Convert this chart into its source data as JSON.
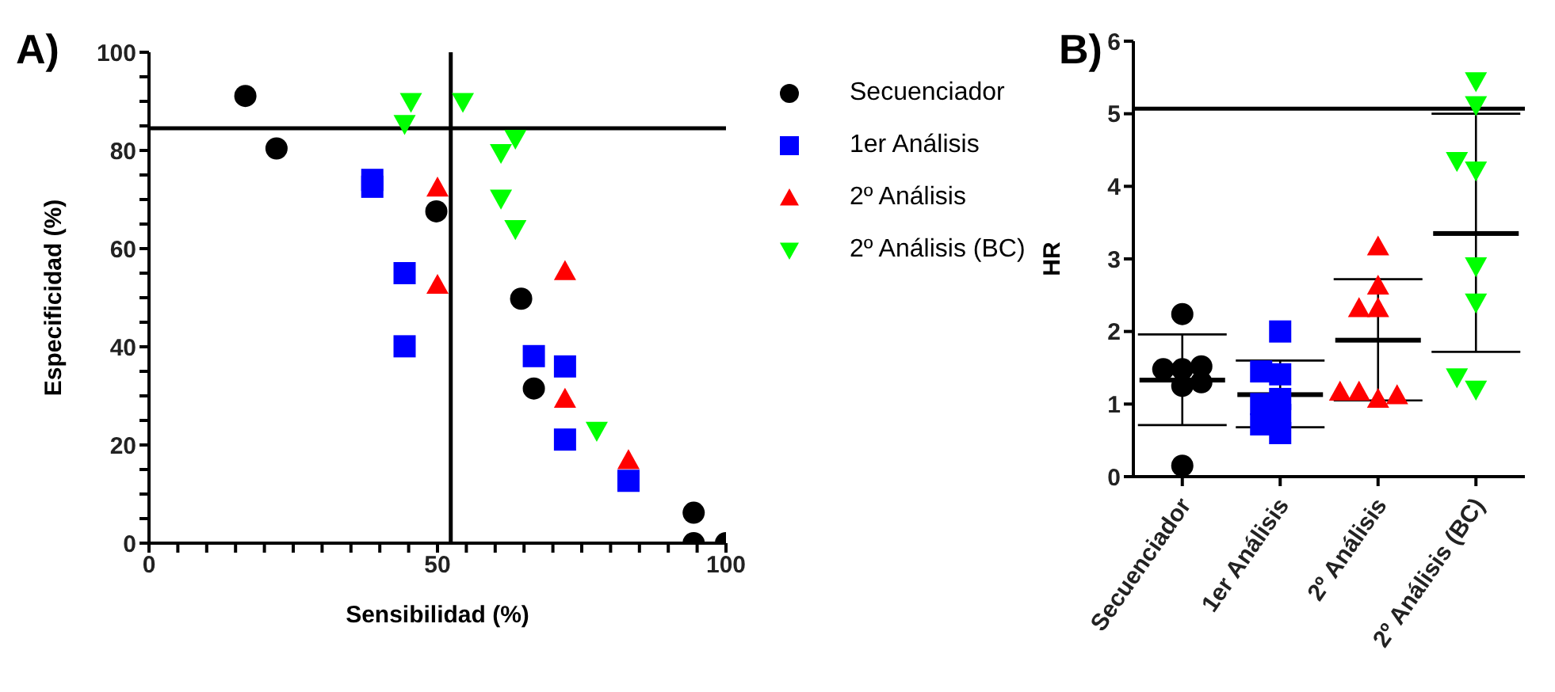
{
  "chart_data": [
    {
      "type": "scatter",
      "title": "A)",
      "xlabel": "Sensibilidad (%)",
      "ylabel": "Especificidad (%)",
      "xlim": [
        0,
        100
      ],
      "ylim": [
        0,
        100
      ],
      "xticks": [
        0,
        {
          "value": 5,
          "label": null
        },
        {
          "value": 10,
          "label": null
        },
        {
          "value": 15,
          "label": null
        },
        {
          "value": 20,
          "label": null
        },
        {
          "value": 25,
          "label": null
        },
        {
          "value": 30,
          "label": null
        },
        {
          "value": 35,
          "label": null
        },
        {
          "value": 40,
          "label": null
        },
        {
          "value": 45,
          "label": null
        },
        50,
        {
          "value": 55,
          "label": null
        },
        {
          "value": 60,
          "label": null
        },
        {
          "value": 65,
          "label": null
        },
        {
          "value": 70,
          "label": null
        },
        {
          "value": 75,
          "label": null
        },
        {
          "value": 80,
          "label": null
        },
        {
          "value": 85,
          "label": null
        },
        {
          "value": 90,
          "label": null
        },
        {
          "value": 95,
          "label": null
        },
        100
      ],
      "yticks": [
        0,
        {
          "value": 5,
          "label": null
        },
        {
          "value": 10,
          "label": null
        },
        {
          "value": 15,
          "label": null
        },
        20,
        {
          "value": 25,
          "label": null
        },
        {
          "value": 30,
          "label": null
        },
        {
          "value": 35,
          "label": null
        },
        40,
        {
          "value": 45,
          "label": null
        },
        {
          "value": 50,
          "label": null
        },
        {
          "value": 55,
          "label": null
        },
        60,
        {
          "value": 65,
          "label": null
        },
        {
          "value": 70,
          "label": null
        },
        {
          "value": 75,
          "label": null
        },
        80,
        {
          "value": 85,
          "label": null
        },
        {
          "value": 90,
          "label": null
        },
        {
          "value": 95,
          "label": null
        },
        100
      ],
      "grid": false,
      "legend": "right",
      "ref_lines": [
        {
          "axis": "x",
          "value": 52.3
        },
        {
          "axis": "y",
          "value": 84.5
        }
      ],
      "series": [
        {
          "name": "Secuenciador",
          "color": "#000000",
          "marker": "circle",
          "x": [
            16.7,
            22.1,
            49.8,
            64.5,
            66.7,
            94.4,
            94.4,
            100
          ],
          "values": [
            91.1,
            80.4,
            67.6,
            49.8,
            31.5,
            6.2,
            0,
            0
          ]
        },
        {
          "name": "1er Análisis",
          "color": "#0000ff",
          "marker": "square",
          "x": [
            38.7,
            38.7,
            44.3,
            44.3,
            66.7,
            72.1,
            72.1,
            83.1
          ],
          "values": [
            74,
            72.6,
            55,
            40.1,
            38.1,
            36,
            21.1,
            12.7
          ]
        },
        {
          "name": "2º Análisis",
          "color": "#ff0000",
          "marker": "triangle",
          "x": [
            50,
            50,
            72.1,
            72.1,
            83.1
          ],
          "values": [
            72.4,
            52.6,
            55.4,
            29.4,
            16.9
          ]
        },
        {
          "name": "2º Análisis (BC)",
          "color": "#00ff00",
          "marker": "triangle-down",
          "x": [
            45.4,
            44.3,
            54.4,
            63.5,
            61,
            61,
            63.5,
            77.6
          ],
          "values": [
            89.9,
            85.4,
            89.9,
            82.4,
            79.5,
            70.2,
            64,
            22.9
          ]
        }
      ]
    },
    {
      "type": "scatter",
      "title": "B)",
      "ylabel": "HR",
      "categories": [
        "Secuenciador",
        "1er Análisis",
        "2º Análisis",
        "2º Análisis (BC)"
      ],
      "ylim": [
        0,
        6
      ],
      "yticks": [
        0,
        1,
        2,
        3,
        4,
        5,
        6
      ],
      "grid": false,
      "legend": false,
      "ref_lines": [
        {
          "axis": "y",
          "value": 5.07
        }
      ],
      "series": [
        {
          "type": "box",
          "color": "#000000",
          "boxes": [
            {
              "low": 0.71,
              "q1": 1.33,
              "median": 1.33,
              "q3": 1.33,
              "high": 1.96
            },
            {
              "low": 0.68,
              "q1": 1.13,
              "median": 1.13,
              "q3": 1.13,
              "high": 1.6
            },
            {
              "low": 1.05,
              "q1": 1.88,
              "median": 1.88,
              "q3": 1.88,
              "high": 2.72
            },
            {
              "low": 1.72,
              "q1": 3.35,
              "median": 3.35,
              "q3": 3.35,
              "high": 5.0
            }
          ]
        },
        {
          "color": "#000000",
          "marker": "circle",
          "x": [
            "Secuenciador",
            "Secuenciador",
            "Secuenciador",
            "Secuenciador",
            "Secuenciador",
            "Secuenciador",
            "Secuenciador"
          ],
          "values": [
            2.24,
            1.48,
            1.48,
            1.52,
            1.25,
            1.3,
            0.15
          ]
        },
        {
          "color": "#0000ff",
          "marker": "square",
          "x": [
            "1er Análisis",
            "1er Análisis",
            "1er Análisis",
            "1er Análisis",
            "1er Análisis",
            "1er Análisis",
            "1er Análisis",
            "1er Análisis"
          ],
          "values": [
            2,
            1.41,
            1.45,
            1.07,
            0.85,
            1,
            0.72,
            0.6
          ]
        },
        {
          "color": "#ff0000",
          "marker": "triangle",
          "x": [
            "2º Análisis",
            "2º Análisis",
            "2º Análisis",
            "2º Análisis",
            "2º Análisis",
            "2º Análisis",
            "2º Análisis",
            "2º Análisis"
          ],
          "values": [
            3.17,
            2.63,
            2.32,
            2.32,
            1.07,
            1.17,
            1.12,
            1.17
          ]
        },
        {
          "color": "#00ff00",
          "marker": "triangle-down",
          "x": [
            "2º Análisis (BC)",
            "2º Análisis (BC)",
            "2º Análisis (BC)",
            "2º Análisis (BC)",
            "2º Análisis (BC)",
            "2º Análisis (BC)",
            "2º Análisis (BC)",
            "2º Análisis (BC)"
          ],
          "values": [
            5.45,
            5.12,
            4.22,
            4.35,
            2.9,
            2.4,
            1.2,
            1.37
          ]
        }
      ]
    }
  ]
}
